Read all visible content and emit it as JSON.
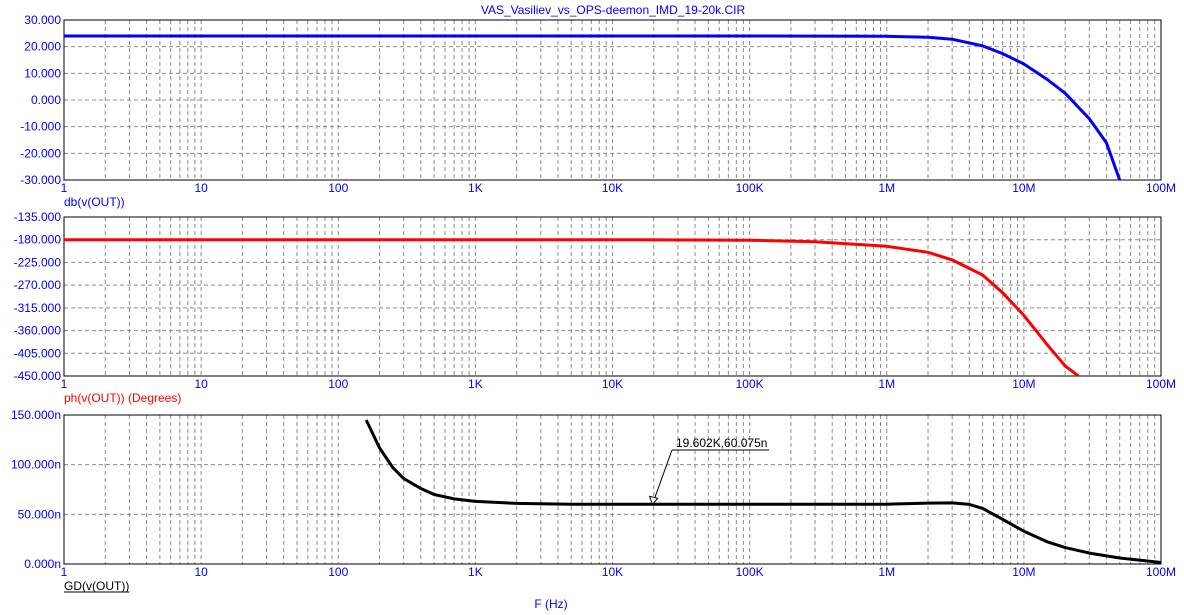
{
  "title": "VAS_Vasiliev_vs_OPS-deemon_IMD_19-20k.CIR",
  "xlabel": "F (Hz)",
  "x_tick_labels": [
    "1",
    "10",
    "100",
    "1K",
    "10K",
    "100K",
    "1M",
    "10M",
    "100M"
  ],
  "chart_data": [
    {
      "type": "line",
      "x_scale": "log",
      "xlim": [
        1,
        100000000
      ],
      "ylim": [
        -30,
        30
      ],
      "y_ticks": [
        -30,
        -20,
        -10,
        0,
        10,
        20,
        30
      ],
      "y_tick_labels": [
        "-30.000",
        "-20.000",
        "-10.000",
        "0.000",
        "10.000",
        "20.000",
        "30.000"
      ],
      "trace_label": "db(v(OUT))",
      "color": "#0000ff",
      "grid": true,
      "x": [
        1,
        100000,
        1000000,
        2000000,
        3000000,
        5000000,
        7000000,
        10000000,
        15000000,
        20000000,
        30000000,
        40000000,
        50000000
      ],
      "y": [
        24,
        24,
        23.9,
        23.5,
        22.8,
        20.3,
        17.4,
        13.5,
        7.5,
        2.5,
        -7,
        -16,
        -30
      ]
    },
    {
      "type": "line",
      "x_scale": "log",
      "xlim": [
        1,
        100000000
      ],
      "ylim": [
        -450,
        -135
      ],
      "y_ticks": [
        -450,
        -405,
        -360,
        -315,
        -270,
        -225,
        -180,
        -135
      ],
      "y_tick_labels": [
        "-450.000",
        "-405.000",
        "-360.000",
        "-315.000",
        "-270.000",
        "-225.000",
        "-180.000",
        "-135.000"
      ],
      "trace_label": "ph(v(OUT)) (Degrees)",
      "color": "#ff0000",
      "grid": true,
      "x": [
        1,
        10000,
        100000,
        300000,
        1000000,
        2000000,
        3000000,
        5000000,
        7000000,
        10000000,
        15000000,
        20000000,
        25000000
      ],
      "y": [
        -180,
        -180,
        -181,
        -184,
        -193,
        -205,
        -220,
        -250,
        -285,
        -330,
        -390,
        -430,
        -450
      ]
    },
    {
      "type": "line",
      "x_scale": "log",
      "xlim": [
        1,
        100000000
      ],
      "ylim": [
        0,
        150
      ],
      "y_ticks": [
        0,
        50,
        100,
        150
      ],
      "y_tick_labels": [
        "0.000n",
        "50.000n",
        "100.000n",
        "150.000n"
      ],
      "trace_label": "GD(v(OUT))",
      "color": "#000000",
      "grid": true,
      "x": [
        160,
        200,
        250,
        300,
        400,
        500,
        700,
        1000,
        2000,
        5000,
        100000,
        1000000,
        2000000,
        3000000,
        4000000,
        5000000,
        7000000,
        10000000,
        15000000,
        20000000,
        30000000,
        50000000,
        100000000
      ],
      "y": [
        145,
        117,
        97,
        86,
        76,
        70,
        65.5,
        63,
        61,
        60.1,
        60.1,
        60.2,
        61.3,
        61.5,
        60,
        56,
        45,
        33,
        22,
        16.5,
        11,
        6,
        1.5
      ],
      "annotation": {
        "text": "19.602K,60.075n",
        "x": 19602,
        "y": 60.075
      }
    }
  ]
}
